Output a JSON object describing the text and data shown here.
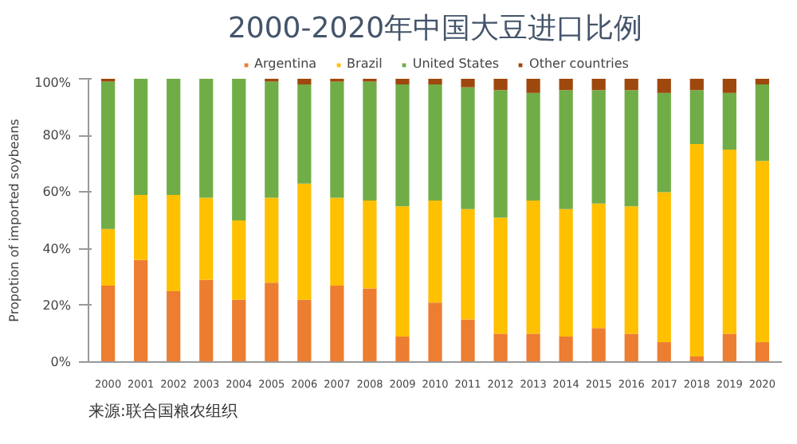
{
  "chart_data": {
    "type": "bar",
    "stacked": true,
    "title": "2000-2020年中国大豆进口比例",
    "ylabel": "Propotion of imported soybeans",
    "categories": [
      "2000",
      "2001",
      "2002",
      "2003",
      "2004",
      "2005",
      "2006",
      "2007",
      "2008",
      "2009",
      "2010",
      "2011",
      "2012",
      "2013",
      "2014",
      "2015",
      "2016",
      "2017",
      "2018",
      "2019",
      "2020"
    ],
    "series": [
      {
        "name": "Argentina",
        "color": "#ed7d31",
        "values": [
          27,
          36,
          25,
          29,
          22,
          28,
          22,
          27,
          26,
          9,
          21,
          15,
          10,
          10,
          9,
          12,
          10,
          7,
          2,
          10,
          7
        ]
      },
      {
        "name": "Brazil",
        "color": "#ffc000",
        "values": [
          20,
          23,
          34,
          29,
          28,
          30,
          41,
          31,
          31,
          46,
          36,
          39,
          41,
          47,
          45,
          44,
          45,
          53,
          75,
          65,
          64
        ]
      },
      {
        "name": "United States",
        "color": "#70ad47",
        "values": [
          52,
          41,
          41,
          42,
          50,
          41,
          35,
          41,
          42,
          43,
          41,
          43,
          45,
          38,
          42,
          40,
          41,
          35,
          19,
          20,
          27
        ]
      },
      {
        "name": "Other countries",
        "color": "#9e480e",
        "values": [
          1,
          0,
          0,
          0,
          0,
          1,
          2,
          1,
          1,
          2,
          2,
          3,
          4,
          5,
          4,
          4,
          4,
          5,
          4,
          5,
          2
        ]
      }
    ],
    "ylim": [
      0,
      100
    ],
    "yticks": [
      {
        "value": 0,
        "label": "0%"
      },
      {
        "value": 20,
        "label": "20%"
      },
      {
        "value": 40,
        "label": "40%"
      },
      {
        "value": 60,
        "label": "60%"
      },
      {
        "value": 80,
        "label": "80%"
      },
      {
        "value": 100,
        "label": "100%"
      }
    ],
    "legend": "top",
    "annotations": [
      "来源:联合国粮农组织"
    ]
  }
}
